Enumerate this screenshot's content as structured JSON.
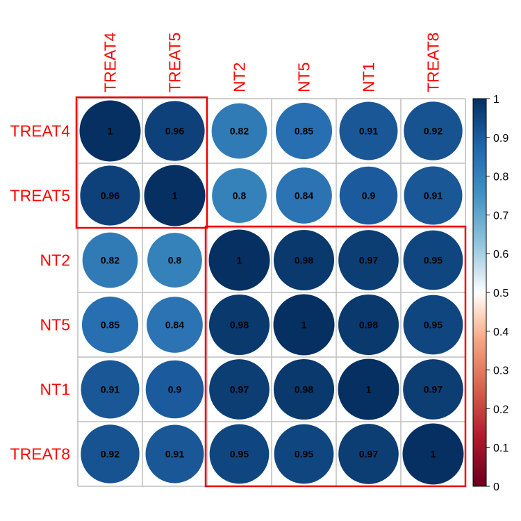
{
  "chart_data": {
    "type": "heatmap",
    "variables": [
      "TREAT4",
      "TREAT5",
      "NT2",
      "NT5",
      "NT1",
      "TREAT8"
    ],
    "matrix": [
      [
        1,
        0.96,
        0.82,
        0.85,
        0.91,
        0.92
      ],
      [
        0.96,
        1,
        0.8,
        0.84,
        0.9,
        0.91
      ],
      [
        0.82,
        0.8,
        1,
        0.98,
        0.97,
        0.95
      ],
      [
        0.85,
        0.84,
        0.98,
        1,
        0.98,
        0.95
      ],
      [
        0.91,
        0.9,
        0.97,
        0.98,
        1,
        0.97
      ],
      [
        0.92,
        0.91,
        0.95,
        0.95,
        0.97,
        1
      ]
    ],
    "cell_labels": [
      [
        "1",
        "0.96",
        "0.82",
        "0.85",
        "0.91",
        "0.92"
      ],
      [
        "0.96",
        "1",
        "0.8",
        "0.84",
        "0.9",
        "0.91"
      ],
      [
        "0.82",
        "0.8",
        "1",
        "0.98",
        "0.97",
        "0.95"
      ],
      [
        "0.85",
        "0.84",
        "0.98",
        "1",
        "0.98",
        "0.95"
      ],
      [
        "0.91",
        "0.9",
        "0.97",
        "0.98",
        "1",
        "0.97"
      ],
      [
        "0.92",
        "0.91",
        "0.95",
        "0.95",
        "0.97",
        "1"
      ]
    ],
    "glyph": "circle",
    "label_color": "#ff0000",
    "cell_label_color": "#000000",
    "color_scale": {
      "range": [
        0,
        1
      ],
      "ticks": [
        "0",
        "0.1",
        "0.2",
        "0.3",
        "0.4",
        "0.5",
        "0.6",
        "0.7",
        "0.8",
        "0.9",
        "1"
      ],
      "stops": [
        {
          "value": 0.0,
          "color": "#67001f"
        },
        {
          "value": 0.125,
          "color": "#b2182b"
        },
        {
          "value": 0.25,
          "color": "#d6604d"
        },
        {
          "value": 0.375,
          "color": "#f4a582"
        },
        {
          "value": 0.45,
          "color": "#fddbc7"
        },
        {
          "value": 0.5,
          "color": "#ffffff"
        },
        {
          "value": 0.55,
          "color": "#d1e5f0"
        },
        {
          "value": 0.625,
          "color": "#92c5de"
        },
        {
          "value": 0.75,
          "color": "#4393c3"
        },
        {
          "value": 0.875,
          "color": "#2166ac"
        },
        {
          "value": 1.0,
          "color": "#053061"
        }
      ]
    },
    "cluster_boxes": [
      {
        "from": "TREAT4",
        "to": "TREAT5",
        "color": "#ee0000"
      },
      {
        "from": "NT2",
        "to": "TREAT8",
        "color": "#ee0000"
      }
    ],
    "grid": true,
    "legend": "right"
  }
}
